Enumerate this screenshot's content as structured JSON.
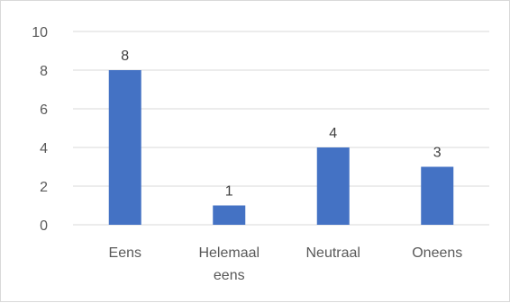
{
  "chart_data": {
    "type": "bar",
    "categories": [
      [
        "Eens"
      ],
      [
        "Helemaal",
        "eens"
      ],
      [
        "Neutraal"
      ],
      [
        "Oneens"
      ]
    ],
    "values": [
      8,
      1,
      4,
      3
    ],
    "yticks": [
      0,
      2,
      4,
      6,
      8,
      10
    ],
    "ylim": [
      0,
      10
    ],
    "title": "",
    "xlabel": "",
    "ylabel": "",
    "grid": true,
    "legend": "none",
    "bar_color": "#4472c4",
    "grid_color": "#d9d9d9",
    "data_labels": true
  }
}
